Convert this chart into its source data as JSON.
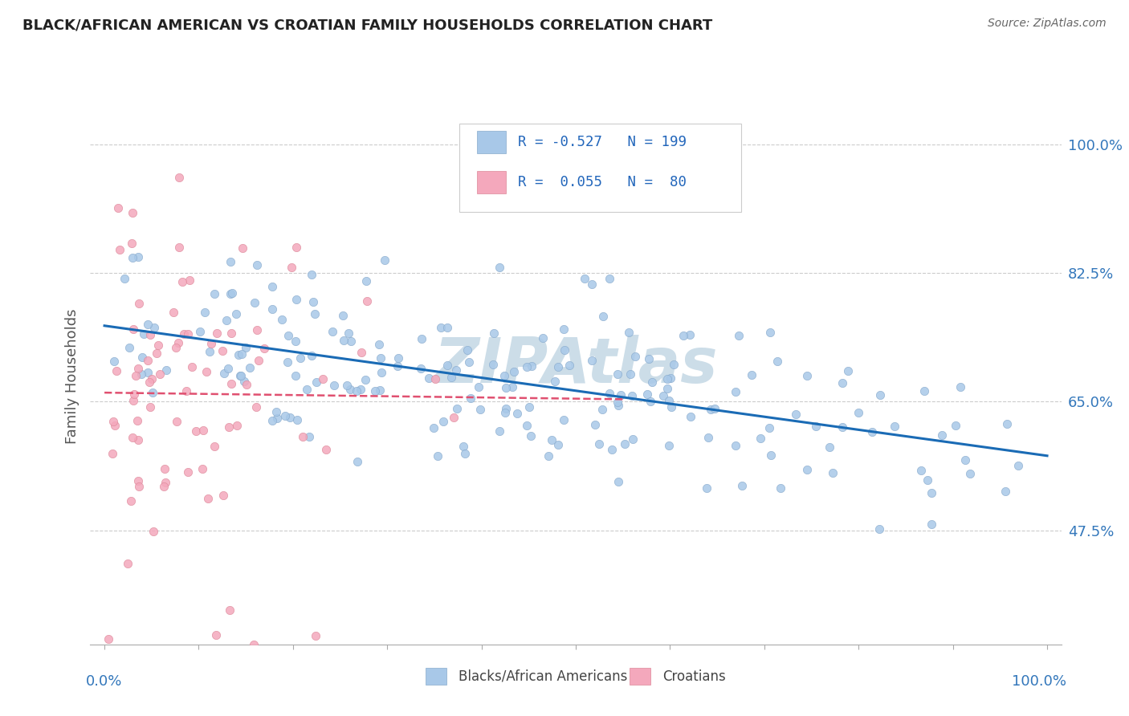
{
  "title": "BLACK/AFRICAN AMERICAN VS CROATIAN FAMILY HOUSEHOLDS CORRELATION CHART",
  "source": "Source: ZipAtlas.com",
  "ylabel": "Family Households",
  "legend_blue_text": "R = -0.527   N = 199",
  "legend_pink_text": "R =  0.055   N =  80",
  "legend_label_blue": "Blacks/African Americans",
  "legend_label_pink": "Croatians",
  "ytick_labels": [
    "47.5%",
    "65.0%",
    "82.5%",
    "100.0%"
  ],
  "ytick_values": [
    0.475,
    0.65,
    0.825,
    1.0
  ],
  "blue_color": "#a8c8e8",
  "blue_edge_color": "#88aacc",
  "pink_color": "#f4a8bc",
  "pink_edge_color": "#dd8899",
  "blue_line_color": "#1a6bb5",
  "pink_line_color": "#e05070",
  "watermark": "ZIPAtlas",
  "watermark_color": "#ccdde8",
  "background_color": "#ffffff",
  "grid_color": "#cccccc",
  "title_color": "#222222",
  "tick_label_color": "#3377bb",
  "axis_label_color": "#3377bb",
  "legend_text_color": "#2266bb",
  "source_color": "#666666",
  "ylabel_color": "#555555"
}
